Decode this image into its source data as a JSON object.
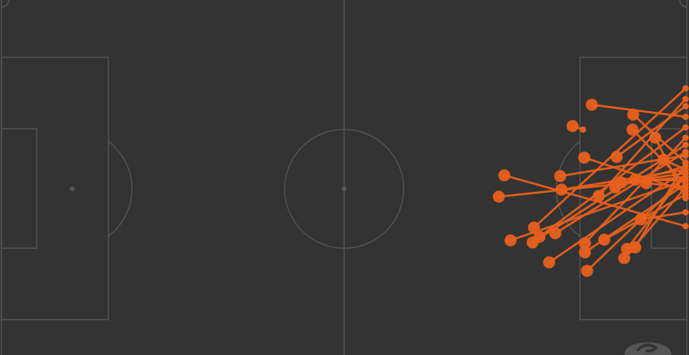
{
  "chart_data": {
    "type": "scatter",
    "subtype": "shot-map",
    "title": "",
    "xlim": [
      0,
      100
    ],
    "ylim": [
      0,
      100
    ],
    "grid": false,
    "colors": {
      "background": "#333333",
      "pitch_lines": "#555555",
      "shot": "#e8601c",
      "logo": "#555555"
    },
    "shots": [
      {
        "x": 85.9,
        "y": 29.5,
        "end_x": 99.5,
        "end_y": 32.9
      },
      {
        "x": 91.9,
        "y": 32.3,
        "end_x": 99.5,
        "end_y": 45.8
      },
      {
        "x": 91.8,
        "y": 36.5,
        "end_x": 99.5,
        "end_y": 51.8
      },
      {
        "x": 83.1,
        "y": 35.5,
        "end_x": 84.6,
        "end_y": 36.5
      },
      {
        "x": 84.8,
        "y": 44.4,
        "end_x": 99.5,
        "end_y": 53.8
      },
      {
        "x": 89.5,
        "y": 44.2,
        "end_x": 99.5,
        "end_y": 29.9
      },
      {
        "x": 73.2,
        "y": 49.4,
        "end_x": 99.5,
        "end_y": 63.7
      },
      {
        "x": 81.3,
        "y": 49.6,
        "end_x": 99.5,
        "end_y": 43.8
      },
      {
        "x": 81.5,
        "y": 53.4,
        "end_x": 99.5,
        "end_y": 47.8
      },
      {
        "x": 72.4,
        "y": 55.4,
        "end_x": 99.5,
        "end_y": 49.8
      },
      {
        "x": 86.9,
        "y": 55.2,
        "end_x": 99.5,
        "end_y": 27.9
      },
      {
        "x": 90.2,
        "y": 51.4,
        "end_x": 99.5,
        "end_y": 48.8
      },
      {
        "x": 92.2,
        "y": 50.6,
        "end_x": 99.5,
        "end_y": 50.8
      },
      {
        "x": 93.8,
        "y": 51.6,
        "end_x": 99.5,
        "end_y": 52.8
      },
      {
        "x": 89.3,
        "y": 52.8,
        "end_x": 99.5,
        "end_y": 46.8
      },
      {
        "x": 77.5,
        "y": 64.1,
        "end_x": 99.5,
        "end_y": 24.9
      },
      {
        "x": 80.6,
        "y": 65.7,
        "end_x": 99.5,
        "end_y": 42.8
      },
      {
        "x": 78.3,
        "y": 66.7,
        "end_x": 99.5,
        "end_y": 35.9
      },
      {
        "x": 74.1,
        "y": 67.7,
        "end_x": 99.5,
        "end_y": 50.8
      },
      {
        "x": 77.3,
        "y": 68.3,
        "end_x": 99.5,
        "end_y": 40.8
      },
      {
        "x": 84.9,
        "y": 68.5,
        "end_x": 99.5,
        "end_y": 38.8
      },
      {
        "x": 87.7,
        "y": 67.5,
        "end_x": 99.5,
        "end_y": 54.8
      },
      {
        "x": 84.9,
        "y": 71.1,
        "end_x": 99.5,
        "end_y": 51.8
      },
      {
        "x": 91.0,
        "y": 70.1,
        "end_x": 99.5,
        "end_y": 48.8
      },
      {
        "x": 92.2,
        "y": 69.7,
        "end_x": 99.5,
        "end_y": 45.8
      },
      {
        "x": 90.6,
        "y": 72.7,
        "end_x": 99.5,
        "end_y": 52.8
      },
      {
        "x": 79.7,
        "y": 73.9,
        "end_x": 99.5,
        "end_y": 47.8
      },
      {
        "x": 85.2,
        "y": 76.3,
        "end_x": 99.5,
        "end_y": 49.8
      },
      {
        "x": 96.3,
        "y": 45.0,
        "end_x": 99.5,
        "end_y": 47.8
      },
      {
        "x": 95.1,
        "y": 38.8,
        "end_x": 99.5,
        "end_y": 55.8
      },
      {
        "x": 93.0,
        "y": 61.8,
        "end_x": 99.5,
        "end_y": 59.8
      }
    ]
  }
}
